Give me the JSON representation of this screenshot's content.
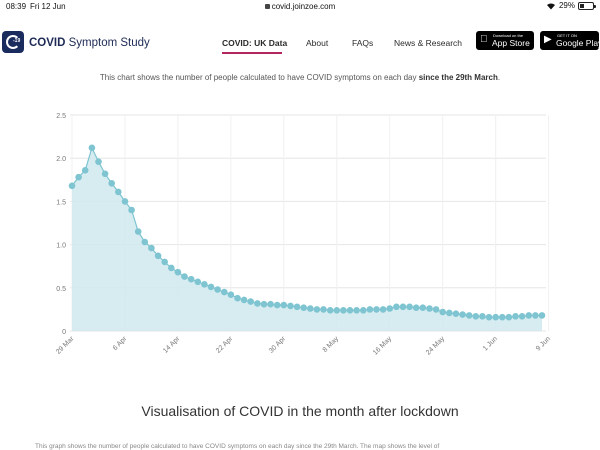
{
  "statusbar": {
    "time": "08:39",
    "date": "Fri 12 Jun",
    "url": "covid.joinzoe.com",
    "battery": "29%",
    "battery_level": 0.29
  },
  "nav": {
    "logo_icon": "covid-app-logo-icon",
    "logo_badge": "-19",
    "brand_bold": "COVID",
    "brand_rest": " Symptom Study",
    "links": [
      "COVID: UK Data",
      "About",
      "FAQs",
      "News & Research"
    ],
    "active_index": 0,
    "accent_color": "#b32660",
    "appstore": {
      "small": "Download on the",
      "big": "App Store",
      "icon": "apple-icon"
    },
    "googleplay": {
      "small": "GET IT ON",
      "big": "Google Play",
      "icon": "google-play-icon"
    }
  },
  "caption": {
    "text": "This chart shows the number of people calculated to have COVID symptoms on each day ",
    "bold": "since the 29th March",
    "end": "."
  },
  "chart_data": {
    "type": "area",
    "title": "",
    "xlabel": "",
    "ylabel": "",
    "ylim": [
      0,
      2.5
    ],
    "yticks": [
      0,
      0.5,
      1.0,
      1.5,
      2.0,
      2.5
    ],
    "ytick_labels": [
      "0",
      "0.5",
      "1.0",
      "1.5",
      "2.0",
      "2.5"
    ],
    "xtick_labels": [
      "29 Mar",
      "6 Apr",
      "14 Apr",
      "22 Apr",
      "30 Apr",
      "8 May",
      "16 May",
      "24 May",
      "1 Jun",
      "9 Jun"
    ],
    "grid": true,
    "line_color": "#7ec4d1",
    "fill_color": "#cfe9ee",
    "start_date": "2020-03-29",
    "values": [
      1.68,
      1.78,
      1.86,
      2.12,
      1.96,
      1.82,
      1.71,
      1.61,
      1.5,
      1.4,
      1.15,
      1.03,
      0.96,
      0.87,
      0.8,
      0.73,
      0.68,
      0.63,
      0.6,
      0.57,
      0.54,
      0.51,
      0.48,
      0.45,
      0.42,
      0.38,
      0.36,
      0.34,
      0.32,
      0.31,
      0.31,
      0.3,
      0.3,
      0.29,
      0.28,
      0.27,
      0.26,
      0.25,
      0.25,
      0.24,
      0.24,
      0.24,
      0.24,
      0.24,
      0.24,
      0.25,
      0.25,
      0.25,
      0.26,
      0.28,
      0.28,
      0.28,
      0.27,
      0.27,
      0.26,
      0.25,
      0.22,
      0.21,
      0.2,
      0.19,
      0.18,
      0.17,
      0.17,
      0.16,
      0.16,
      0.16,
      0.16,
      0.17,
      0.17,
      0.18,
      0.18,
      0.18
    ]
  },
  "heading": "Visualisation of COVID in the month after lockdown",
  "cut_text": "This graph shows the number of people calculated to have COVID symptoms on each day since the 29th March. The map shows the level of"
}
